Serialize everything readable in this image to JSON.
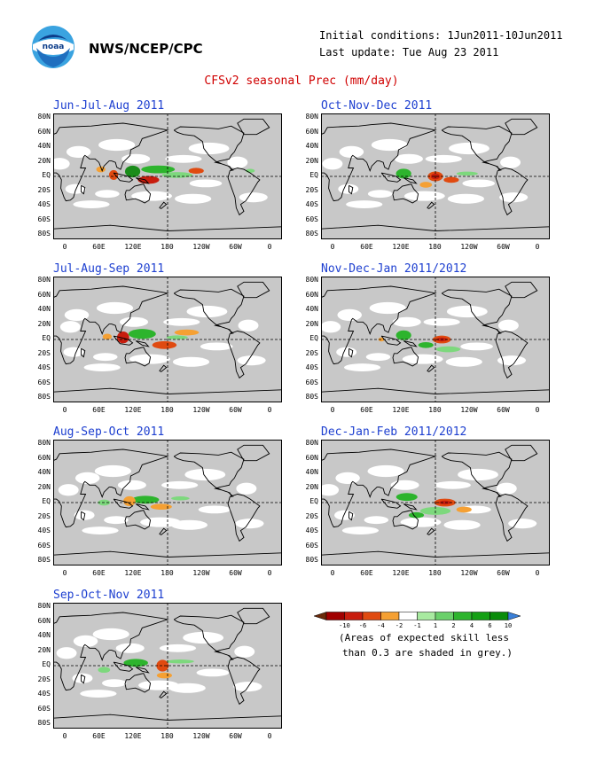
{
  "header": {
    "agency": "NWS/NCEP/CPC",
    "initial_conditions": "Initial conditions: 1Jun2011-10Jun2011",
    "last_update": "Last update: Tue Aug 23 2011",
    "title": "CFSv2 seasonal Prec (mm/day)",
    "logo_text": "noaa"
  },
  "map_axes": {
    "lat_labels": [
      "80N",
      "60N",
      "40N",
      "20N",
      "EQ",
      "20S",
      "40S",
      "60S",
      "80S"
    ],
    "lon_labels": [
      "0",
      "60E",
      "120E",
      "180",
      "120W",
      "60W",
      "0"
    ]
  },
  "panels": [
    {
      "title": "Jun-Jul-Aug 2011",
      "anomalies": [
        {
          "lon": 165,
          "lat": 10,
          "rx": 22,
          "ry": 4,
          "color": "#2db42d"
        },
        {
          "lon": 125,
          "lat": 7,
          "rx": 10,
          "ry": 6,
          "color": "#1a8c1a"
        },
        {
          "lon": 225,
          "lat": 8,
          "rx": 10,
          "ry": 3,
          "color": "#e04a10"
        },
        {
          "lon": 150,
          "lat": -5,
          "rx": 14,
          "ry": 4,
          "color": "#c81d0e"
        },
        {
          "lon": 195,
          "lat": 2,
          "rx": 20,
          "ry": 3,
          "color": "#7dd87d"
        },
        {
          "lon": 75,
          "lat": 10,
          "rx": 6,
          "ry": 3,
          "color": "#f5a033"
        },
        {
          "lon": 95,
          "lat": 2,
          "rx": 6,
          "ry": 5,
          "color": "#e04a10"
        },
        {
          "lon": 310,
          "lat": 8,
          "rx": 6,
          "ry": 2,
          "color": "#7dd87d"
        }
      ]
    },
    {
      "title": "Jul-Aug-Sep 2011",
      "anomalies": [
        {
          "lon": 140,
          "lat": 8,
          "rx": 18,
          "ry": 5,
          "color": "#2db42d"
        },
        {
          "lon": 110,
          "lat": 3,
          "rx": 8,
          "ry": 6,
          "color": "#c81d0e"
        },
        {
          "lon": 175,
          "lat": -8,
          "rx": 16,
          "ry": 4,
          "color": "#e04a10"
        },
        {
          "lon": 210,
          "lat": 10,
          "rx": 16,
          "ry": 3,
          "color": "#f5a033"
        },
        {
          "lon": 195,
          "lat": 3,
          "rx": 14,
          "ry": 2,
          "color": "#7dd87d"
        },
        {
          "lon": 85,
          "lat": 4,
          "rx": 6,
          "ry": 3,
          "color": "#f5a033"
        }
      ]
    },
    {
      "title": "Aug-Sep-Oct 2011",
      "anomalies": [
        {
          "lon": 145,
          "lat": 4,
          "rx": 18,
          "ry": 4,
          "color": "#2db42d"
        },
        {
          "lon": 120,
          "lat": 2,
          "rx": 8,
          "ry": 5,
          "color": "#f5a033"
        },
        {
          "lon": 170,
          "lat": -6,
          "rx": 14,
          "ry": 3,
          "color": "#f5a033"
        },
        {
          "lon": 80,
          "lat": 0,
          "rx": 8,
          "ry": 3,
          "color": "#7dd87d"
        },
        {
          "lon": 200,
          "lat": 6,
          "rx": 12,
          "ry": 2,
          "color": "#7dd87d"
        }
      ]
    },
    {
      "title": "Sep-Oct-Nov 2011",
      "anomalies": [
        {
          "lon": 172,
          "lat": 0,
          "rx": 8,
          "ry": 6,
          "color": "#e04a10"
        },
        {
          "lon": 130,
          "lat": 4,
          "rx": 16,
          "ry": 4,
          "color": "#2db42d"
        },
        {
          "lon": 200,
          "lat": 6,
          "rx": 18,
          "ry": 2,
          "color": "#7dd87d"
        },
        {
          "lon": 175,
          "lat": -14,
          "rx": 10,
          "ry": 3,
          "color": "#f5a033"
        },
        {
          "lon": 80,
          "lat": -6,
          "rx": 8,
          "ry": 3,
          "color": "#7dd87d"
        }
      ]
    },
    {
      "title": "Oct-Nov-Dec 2011",
      "anomalies": [
        {
          "lon": 180,
          "lat": 0,
          "rx": 10,
          "ry": 5,
          "color": "#e04a10"
        },
        {
          "lon": 180,
          "lat": 0,
          "rx": 6,
          "ry": 3,
          "color": "#c81d0e"
        },
        {
          "lon": 205,
          "lat": -5,
          "rx": 10,
          "ry": 3,
          "color": "#e04a10"
        },
        {
          "lon": 130,
          "lat": 4,
          "rx": 10,
          "ry": 5,
          "color": "#2db42d"
        },
        {
          "lon": 230,
          "lat": 4,
          "rx": 14,
          "ry": 2,
          "color": "#7dd87d"
        },
        {
          "lon": 165,
          "lat": -12,
          "rx": 8,
          "ry": 3,
          "color": "#f5a033"
        }
      ]
    },
    {
      "title": "Nov-Dec-Jan 2011/2012",
      "anomalies": [
        {
          "lon": 190,
          "lat": 0,
          "rx": 12,
          "ry": 4,
          "color": "#e04a10"
        },
        {
          "lon": 190,
          "lat": 0,
          "rx": 7,
          "ry": 2,
          "color": "#c81d0e"
        },
        {
          "lon": 130,
          "lat": 6,
          "rx": 10,
          "ry": 5,
          "color": "#2db42d"
        },
        {
          "lon": 200,
          "lat": -14,
          "rx": 16,
          "ry": 3,
          "color": "#7dd87d"
        },
        {
          "lon": 165,
          "lat": -8,
          "rx": 10,
          "ry": 3,
          "color": "#2db42d"
        },
        {
          "lon": 95,
          "lat": 0,
          "rx": 4,
          "ry": 2,
          "color": "#f5a033"
        }
      ]
    },
    {
      "title": "Dec-Jan-Feb 2011/2012",
      "anomalies": [
        {
          "lon": 195,
          "lat": 0,
          "rx": 14,
          "ry": 4,
          "color": "#e04a10"
        },
        {
          "lon": 195,
          "lat": 0,
          "rx": 8,
          "ry": 2,
          "color": "#c81d0e"
        },
        {
          "lon": 135,
          "lat": 8,
          "rx": 14,
          "ry": 4,
          "color": "#2db42d"
        },
        {
          "lon": 180,
          "lat": -12,
          "rx": 20,
          "ry": 4,
          "color": "#7dd87d"
        },
        {
          "lon": 150,
          "lat": -18,
          "rx": 10,
          "ry": 3,
          "color": "#2db42d"
        },
        {
          "lon": 225,
          "lat": -10,
          "rx": 10,
          "ry": 3,
          "color": "#f5a033"
        }
      ]
    }
  ],
  "colorbar": {
    "colors": [
      "#6b2a0a",
      "#a00000",
      "#c81d0e",
      "#e04a10",
      "#f5a033",
      "#ffffff",
      "#a8eaa0",
      "#6ad06a",
      "#2db42d",
      "#14a014",
      "#0a8c0a",
      "#3a7fd8"
    ],
    "labels": [
      "-10",
      "-6",
      "-4",
      "-2",
      "-1",
      "1",
      "2",
      "4",
      "6",
      "10"
    ],
    "note_line1": "(Areas of expected skill less",
    "note_line2": "than 0.3 are shaded in grey.)"
  },
  "colors": {
    "title": "#d00000",
    "panel_title": "#1d3fd0",
    "grey_low_skill": "#c8c8c8"
  }
}
